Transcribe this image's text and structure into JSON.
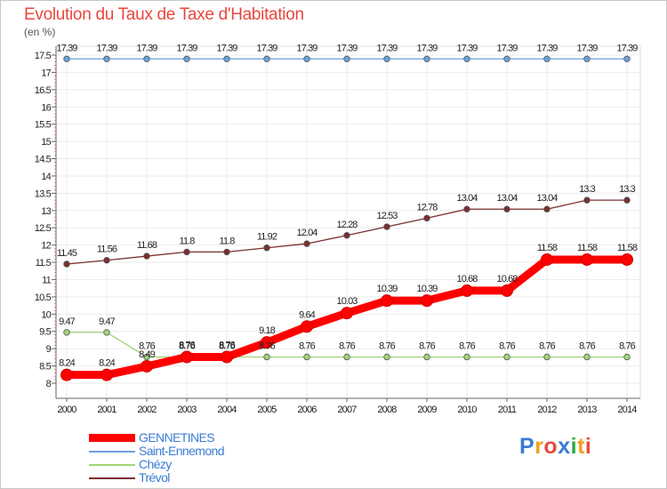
{
  "chart_data": {
    "type": "line",
    "title": "Evolution du Taux de Taxe d'Habitation",
    "unit": "(en %)",
    "xlabel": "",
    "ylabel": "",
    "x": [
      2000,
      2001,
      2002,
      2003,
      2004,
      2005,
      2006,
      2007,
      2008,
      2009,
      2010,
      2011,
      2012,
      2013,
      2014
    ],
    "ylim": [
      8,
      17.5
    ],
    "yticks": [
      8,
      8.5,
      9,
      9.5,
      10,
      10.5,
      11,
      11.5,
      12,
      12.5,
      13,
      13.5,
      14,
      14.5,
      15,
      15.5,
      16,
      16.5,
      17,
      17.5
    ],
    "grid": true,
    "legend_position": "bottom-left",
    "series": [
      {
        "name": "GENNETINES",
        "color": "#ff0000",
        "emphasis": true,
        "values": [
          8.24,
          8.24,
          8.49,
          8.76,
          8.76,
          9.18,
          9.64,
          10.03,
          10.39,
          10.39,
          10.68,
          10.68,
          11.58,
          11.58,
          11.58
        ]
      },
      {
        "name": "Saint-Ennemond",
        "color": "#6ca0dc",
        "values": [
          17.39,
          17.39,
          17.39,
          17.39,
          17.39,
          17.39,
          17.39,
          17.39,
          17.39,
          17.39,
          17.39,
          17.39,
          17.39,
          17.39,
          17.39
        ]
      },
      {
        "name": "Chézy",
        "color": "#a0d67a",
        "values": [
          9.47,
          9.47,
          8.76,
          8.76,
          8.76,
          8.76,
          8.76,
          8.76,
          8.76,
          8.76,
          8.76,
          8.76,
          8.76,
          8.76,
          8.76
        ]
      },
      {
        "name": "Trévol",
        "color": "#7a2f2f",
        "values": [
          11.45,
          11.56,
          11.68,
          11.8,
          11.8,
          11.92,
          12.04,
          12.28,
          12.53,
          12.78,
          13.04,
          13.04,
          13.04,
          13.3,
          13.3
        ]
      }
    ]
  },
  "logo": {
    "text": "Proxiti",
    "letter_colors": [
      "#3b7bd4",
      "#f0a020",
      "#e84a3d",
      "#3b7bd4",
      "#2bab4a",
      "#f0a020",
      "#e84a3d"
    ]
  }
}
